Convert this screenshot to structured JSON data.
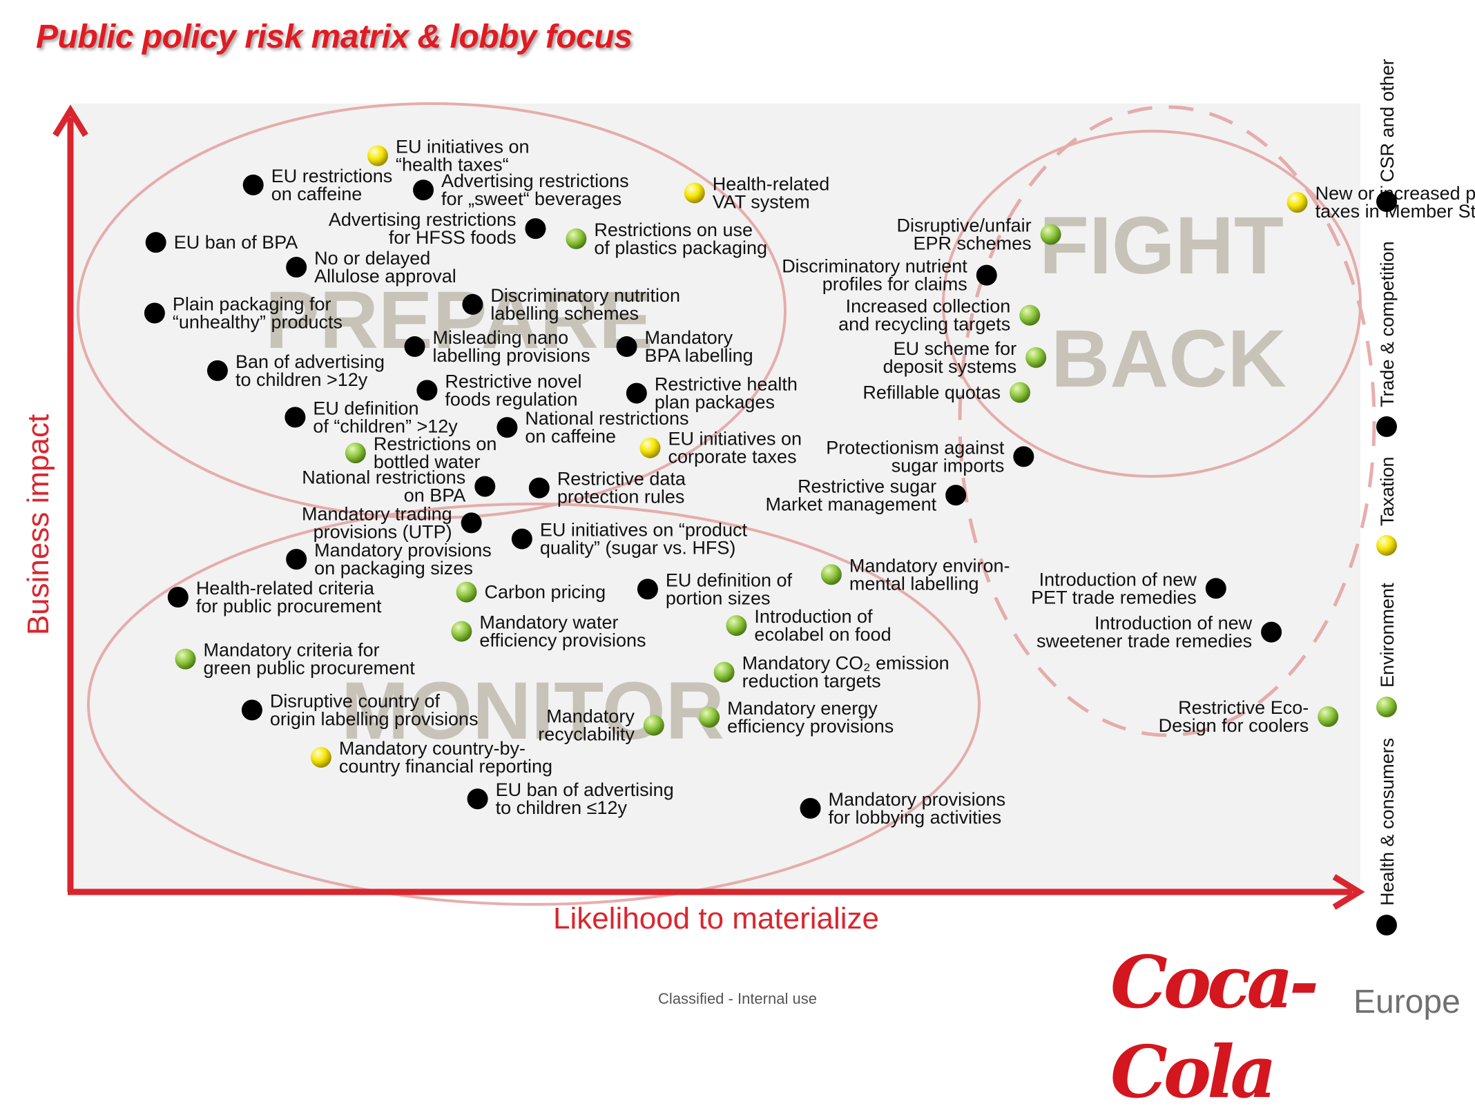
{
  "title": "Public policy risk matrix & lobby focus",
  "footer": "Classified - Internal use",
  "brand": {
    "script": "Coca-Cola",
    "region": "Europe"
  },
  "colors": {
    "Health & consumers": "#e30613",
    "Environment": "#8dc63f",
    "Taxation": "#f5e400",
    "Trade & competition": "#1565c0",
    "CSR and other": "#e8672a"
  },
  "chart_data": {
    "type": "scatter",
    "title": "Public policy risk matrix & lobby focus",
    "xlabel": "Likelihood to materialize",
    "ylabel": "Business impact",
    "xlim": [
      0,
      100
    ],
    "ylim": [
      0,
      100
    ],
    "grid": false,
    "legend_position": "right, vertical",
    "legend": [
      "Health & consumers",
      "Environment",
      "Taxation",
      "Trade & competition",
      "CSR and other"
    ],
    "regions": [
      "PREPARE",
      "FIGHT BACK",
      "MONITOR"
    ],
    "points": [
      {
        "label": [
          "EU initiatives on",
          "“health taxes“"
        ],
        "category": "Taxation",
        "x": 21.4,
        "y": 95.2
      },
      {
        "label": [
          "EU restrictions",
          "on caffeine"
        ],
        "category": "Health & consumers",
        "x": 11.3,
        "y": 91.2
      },
      {
        "label": [
          "Advertising restrictions",
          "for „sweet“ beverages"
        ],
        "category": "Health & consumers",
        "x": 25.1,
        "y": 90.5
      },
      {
        "label": [
          "Health-related",
          "VAT system"
        ],
        "category": "Taxation",
        "x": 47.1,
        "y": 90.1
      },
      {
        "label": [
          "New or increased product",
          "taxes in Member States"
        ],
        "category": "Taxation",
        "x": 96.0,
        "y": 88.8
      },
      {
        "label": [
          "Advertising restrictions",
          "for HFSS foods"
        ],
        "category": "Health & consumers",
        "x": 34.2,
        "y": 85.2,
        "align": "left"
      },
      {
        "label": [
          "Restrictions on use",
          "of plastics packaging"
        ],
        "category": "Environment",
        "x": 37.5,
        "y": 83.8
      },
      {
        "label": [
          "Disruptive/unfair",
          "EPR schemes"
        ],
        "category": "Environment",
        "x": 76.0,
        "y": 84.4,
        "align": "left"
      },
      {
        "label": [
          "EU ban of BPA"
        ],
        "category": "Health & consumers",
        "x": 3.4,
        "y": 83.3
      },
      {
        "label": [
          "No or delayed",
          "Allulose approval"
        ],
        "category": "Health & consumers",
        "x": 14.8,
        "y": 79.9
      },
      {
        "label": [
          "Discriminatory nutrient",
          "profiles for claims"
        ],
        "category": "Health & consumers",
        "x": 70.8,
        "y": 78.8,
        "align": "left"
      },
      {
        "label": [
          "Plain packaging for",
          "“unhealthy” products"
        ],
        "category": "Health & consumers",
        "x": 3.3,
        "y": 73.6
      },
      {
        "label": [
          "Discriminatory nutrition",
          "labelling schemes"
        ],
        "category": "Health & consumers",
        "x": 29.1,
        "y": 74.8
      },
      {
        "label": [
          "Increased collection",
          "and recycling targets"
        ],
        "category": "Environment",
        "x": 74.3,
        "y": 73.3,
        "align": "left"
      },
      {
        "label": [
          "Misleading nano",
          "labelling provisions"
        ],
        "category": "Health & consumers",
        "x": 24.4,
        "y": 69.0
      },
      {
        "label": [
          "Mandatory",
          "BPA labelling"
        ],
        "category": "Health & consumers",
        "x": 41.6,
        "y": 69.0
      },
      {
        "label": [
          "EU scheme for",
          "deposit systems"
        ],
        "category": "Environment",
        "x": 74.8,
        "y": 67.5,
        "align": "left"
      },
      {
        "label": [
          "Ban of advertising",
          "to children >12y"
        ],
        "category": "Health & consumers",
        "x": 8.4,
        "y": 65.7
      },
      {
        "label": [
          "Restrictive novel",
          "foods regulation"
        ],
        "category": "Health & consumers",
        "x": 25.4,
        "y": 63.0
      },
      {
        "label": [
          "Restrictive health",
          "plan packages"
        ],
        "category": "Health & consumers",
        "x": 42.4,
        "y": 62.6
      },
      {
        "label": [
          "Refillable quotas"
        ],
        "category": "Environment",
        "x": 73.5,
        "y": 62.7,
        "align": "left"
      },
      {
        "label": [
          "EU definition",
          "of “children” >12y"
        ],
        "category": "Health & consumers",
        "x": 14.7,
        "y": 59.3
      },
      {
        "label": [
          "National restrictions",
          "on caffeine"
        ],
        "category": "Health & consumers",
        "x": 31.9,
        "y": 57.9
      },
      {
        "label": [
          "EU initiatives on",
          "corporate taxes"
        ],
        "category": "Taxation",
        "x": 43.5,
        "y": 55.1
      },
      {
        "label": [
          "Protectionism against",
          "sugar imports"
        ],
        "category": "Trade & competition",
        "x": 73.8,
        "y": 53.9,
        "align": "left"
      },
      {
        "label": [
          "Restrictions on",
          "bottled water"
        ],
        "category": "Environment",
        "x": 19.6,
        "y": 54.4
      },
      {
        "label": [
          "National restrictions",
          "on BPA"
        ],
        "category": "Health & consumers",
        "x": 30.1,
        "y": 49.8,
        "align": "left"
      },
      {
        "label": [
          "Restrictive data",
          "protection rules"
        ],
        "category": "Health & consumers",
        "x": 34.5,
        "y": 49.6
      },
      {
        "label": [
          "Restrictive sugar",
          "Market management"
        ],
        "category": "Trade & competition",
        "x": 68.3,
        "y": 48.6,
        "align": "left"
      },
      {
        "label": [
          "Mandatory trading",
          "provisions (UTP)"
        ],
        "category": "Trade & competition",
        "x": 29.0,
        "y": 44.8,
        "align": "left"
      },
      {
        "label": [
          "EU initiatives on “product",
          "quality” (sugar vs. HFS)"
        ],
        "category": "Health & consumers",
        "x": 33.1,
        "y": 42.6
      },
      {
        "label": [
          "Mandatory provisions",
          "on packaging sizes"
        ],
        "category": "Health & consumers",
        "x": 14.8,
        "y": 39.8
      },
      {
        "label": [
          "Mandatory environ-",
          "mental labelling"
        ],
        "category": "Environment",
        "x": 58.2,
        "y": 37.7
      },
      {
        "label": [
          "Introduction of new",
          "PET trade remedies"
        ],
        "category": "Trade & competition",
        "x": 89.4,
        "y": 35.8,
        "align": "left"
      },
      {
        "label": [
          "Health-related criteria",
          "for public procurement"
        ],
        "category": "Health & consumers",
        "x": 5.2,
        "y": 34.6
      },
      {
        "label": [
          "Carbon pricing"
        ],
        "category": "Environment",
        "x": 28.6,
        "y": 35.3
      },
      {
        "label": [
          "EU definition of",
          "portion sizes"
        ],
        "category": "Health & consumers",
        "x": 43.3,
        "y": 35.7
      },
      {
        "label": [
          "Introduction of",
          "ecolabel on food"
        ],
        "category": "Environment",
        "x": 50.5,
        "y": 30.7
      },
      {
        "label": [
          "Mandatory water",
          "efficiency provisions"
        ],
        "category": "Environment",
        "x": 28.2,
        "y": 29.9
      },
      {
        "label": [
          "Introduction of new",
          "sweetener trade remedies"
        ],
        "category": "Trade & competition",
        "x": 93.9,
        "y": 29.8,
        "align": "left"
      },
      {
        "label": [
          "Mandatory criteria for",
          "green public procurement"
        ],
        "category": "Environment",
        "x": 5.8,
        "y": 26.1
      },
      {
        "label": [
          "Mandatory CO₂ emission",
          "reduction targets"
        ],
        "category": "Environment",
        "x": 49.5,
        "y": 24.3
      },
      {
        "label": [
          "Disruptive country of",
          "origin labelling provisions"
        ],
        "category": "Health & consumers",
        "x": 11.2,
        "y": 19.1
      },
      {
        "label": [
          "Restrictive Eco-",
          "Design for coolers"
        ],
        "category": "Environment",
        "x": 98.5,
        "y": 18.2,
        "align": "left"
      },
      {
        "label": [
          "Mandatory energy",
          "efficiency provisions"
        ],
        "category": "Environment",
        "x": 48.3,
        "y": 18.1
      },
      {
        "label": [
          "Mandatory",
          "recyclability"
        ],
        "category": "Environment",
        "x": 43.8,
        "y": 17.0,
        "align": "left"
      },
      {
        "label": [
          "Mandatory country-by-",
          "country financial reporting"
        ],
        "category": "Taxation",
        "x": 16.8,
        "y": 12.6
      },
      {
        "label": [
          "EU ban of advertising",
          "to children ≤12y"
        ],
        "category": "Health & consumers",
        "x": 29.5,
        "y": 6.9
      },
      {
        "label": [
          "Mandatory provisions",
          "for lobbying activities"
        ],
        "category": "CSR and other",
        "x": 56.5,
        "y": 5.6
      }
    ]
  }
}
